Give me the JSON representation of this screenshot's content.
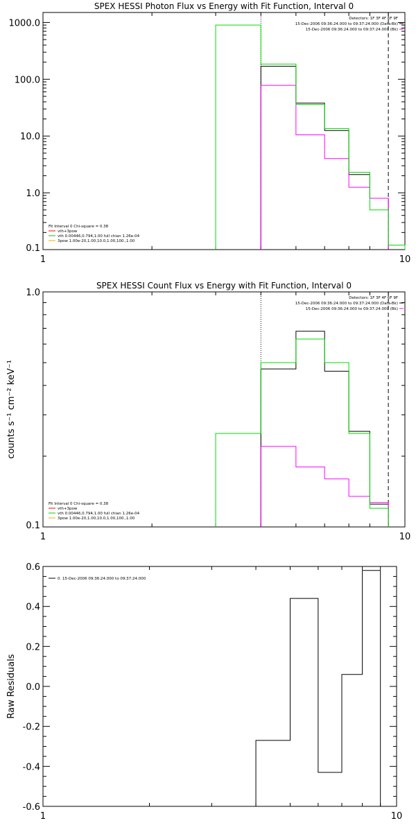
{
  "chart_data": [
    {
      "type": "line",
      "title": "SPEX HESSI Photon Flux vs Energy with Fit Function, Interval 0",
      "xlabel": "",
      "ylabel": "",
      "xscale": "log",
      "yscale": "log",
      "xlim": [
        1,
        10
      ],
      "ylim": [
        0.1,
        1500
      ],
      "x_ticks": [
        1,
        10
      ],
      "x_tick_labels": [
        "1",
        "10"
      ],
      "y_ticks": [
        0.1,
        1,
        10,
        100,
        1000
      ],
      "y_tick_labels": [
        "0.1",
        "1.0",
        "10.0",
        "100.0",
        "1000.0"
      ],
      "info_text": [
        "Detectors: 1F 3F 4F 6F 9F",
        "15-Dec-2006 09:36:24.000 to 09:37:24.000 (Data-Bk)",
        "15-Dec-2006 09:36:24.000 to 09:37:24.000 (Bk)"
      ],
      "legend": [
        "Fit Interval 0   Chi-square = 0.38",
        "vth+3pow",
        "vth 0.00446,0.794,1.00  full chian 1.26e-04",
        "3pow 1.00e-20,1.00,10.0,1.00,100.,1.00"
      ],
      "legend_colors": [
        "#000000",
        "#ff0000",
        "#00cc00",
        "#ffaa00"
      ],
      "vlines": [
        {
          "x": 4.0,
          "style": "dotted"
        },
        {
          "x": 9.0,
          "style": "dashed"
        }
      ],
      "series": [
        {
          "color": "#000000",
          "edges": [
            4,
            5,
            6,
            7,
            8,
            9
          ],
          "values": [
            170,
            38,
            12.5,
            2.1,
            0.8
          ]
        },
        {
          "color": "#ff00ff",
          "edges": [
            4,
            5,
            6,
            7,
            8,
            9
          ],
          "values": [
            78,
            10.5,
            4.0,
            1.25,
            0.8
          ]
        },
        {
          "color": "#00dd00",
          "edges": [
            3,
            4,
            5,
            6,
            7,
            8,
            9,
            10
          ],
          "values": [
            900,
            185,
            36,
            13.5,
            2.3,
            0.5,
            0.12
          ]
        }
      ]
    },
    {
      "type": "line",
      "title": "SPEX HESSI Count Flux vs Energy with Fit Function, Interval 0",
      "xlabel": "",
      "ylabel": "counts s⁻¹ cm⁻² keV⁻¹",
      "xscale": "log",
      "yscale": "log",
      "xlim": [
        1,
        10
      ],
      "ylim": [
        0.1,
        1.0
      ],
      "x_ticks": [
        1,
        10
      ],
      "x_tick_labels": [
        "1",
        "10"
      ],
      "y_ticks": [
        0.1,
        1.0
      ],
      "y_tick_labels": [
        "0.1",
        "1.0"
      ],
      "info_text": [
        "Detectors: 1F 3F 4F 6F 9F",
        "15-Dec-2006 09:36:24.000 to 09:37:24.000 (Data-Bk)",
        "15-Dec-2006 09:36:24.000 to 09:37:24.000 (Bk)"
      ],
      "legend": [
        "Fit Interval 0   Chi-square = 0.38",
        "vth+3pow",
        "vth 0.00446,0.794,1.00  full chian 1.26e-04",
        "3pow 1.00e-20,1.00,10.0,1.00,100.,1.00"
      ],
      "legend_colors": [
        "#000000",
        "#ff0000",
        "#00cc00",
        "#ffaa00"
      ],
      "vlines": [
        {
          "x": 4.0,
          "style": "dotted"
        },
        {
          "x": 9.0,
          "style": "dashed"
        }
      ],
      "series": [
        {
          "color": "#000000",
          "edges": [
            4,
            5,
            6,
            7,
            8,
            9
          ],
          "values": [
            0.47,
            0.68,
            0.46,
            0.255,
            0.125
          ]
        },
        {
          "color": "#ff00ff",
          "edges": [
            4,
            5,
            6,
            7,
            8,
            9
          ],
          "values": [
            0.22,
            0.18,
            0.16,
            0.135,
            0.127
          ]
        },
        {
          "color": "#00dd00",
          "edges": [
            3,
            4,
            5,
            6,
            7,
            8,
            9
          ],
          "values": [
            0.25,
            0.5,
            0.63,
            0.5,
            0.25,
            0.12
          ]
        }
      ]
    },
    {
      "type": "line",
      "title": "",
      "xlabel": "",
      "ylabel": "Raw Residuals",
      "xscale": "log",
      "yscale": "linear",
      "xlim": [
        1,
        10
      ],
      "ylim": [
        -0.6,
        0.6
      ],
      "x_ticks": [
        1,
        10
      ],
      "x_tick_labels": [
        "1",
        "10"
      ],
      "y_ticks": [
        -0.6,
        -0.4,
        -0.2,
        0.0,
        0.2,
        0.4,
        0.6
      ],
      "y_tick_labels": [
        "-0.6",
        "-0.4",
        "-0.2",
        "0.0",
        "0.2",
        "0.4",
        "0.6"
      ],
      "info_text": [],
      "legend": [
        "0. 15-Dec-2006 09:36:24.000 to 09:37:24.000"
      ],
      "legend_colors": [
        "#000000"
      ],
      "vlines": [],
      "series": [
        {
          "color": "#000000",
          "edges": [
            4,
            5,
            6,
            7,
            8,
            9
          ],
          "values": [
            -0.27,
            0.44,
            -0.43,
            0.06,
            0.58
          ],
          "drop_to_bottom": true
        }
      ]
    }
  ]
}
